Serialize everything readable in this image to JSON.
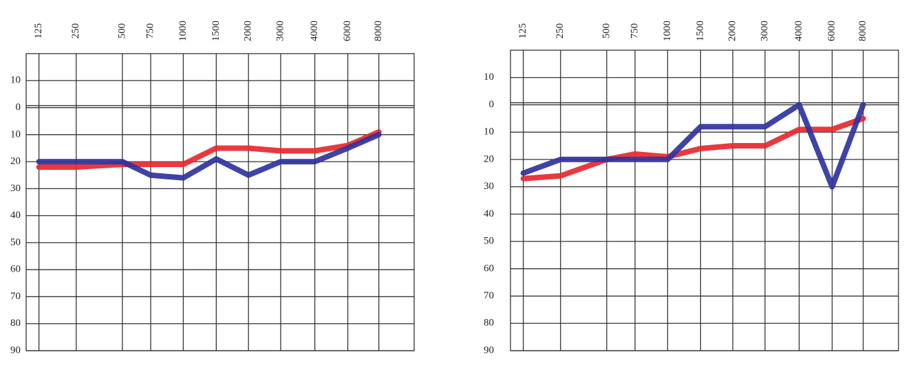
{
  "chart_data": [
    {
      "type": "line",
      "categories": [
        "125",
        "250",
        "500",
        "750",
        "1000",
        "1500",
        "2000",
        "3000",
        "4000",
        "6000",
        "8000"
      ],
      "series": [
        {
          "color": "#e8282e",
          "values": [
            22,
            22,
            21,
            21,
            21,
            15,
            15,
            16,
            16,
            14,
            9
          ]
        },
        {
          "color": "#2f339e",
          "values": [
            20,
            20,
            20,
            25,
            26,
            19,
            25,
            20,
            20,
            15,
            10
          ]
        }
      ],
      "ylim": [
        -20,
        90
      ],
      "y_inverted": true,
      "yticks": [
        {
          "value": -10,
          "label": "10"
        },
        0,
        10,
        20,
        30,
        40,
        50,
        60,
        70,
        80,
        90
      ],
      "grid": true
    },
    {
      "type": "line",
      "categories": [
        "125",
        "250",
        "500",
        "750",
        "1000",
        "1500",
        "2000",
        "3000",
        "4000",
        "6000",
        "8000"
      ],
      "series": [
        {
          "color": "#e8282e",
          "values": [
            27,
            26,
            20,
            18,
            19,
            16,
            15,
            15,
            9,
            9,
            5
          ]
        },
        {
          "color": "#2f339e",
          "values": [
            25,
            20,
            20,
            20,
            20,
            8,
            8,
            8,
            0,
            30,
            0
          ]
        }
      ],
      "ylim": [
        -20,
        90
      ],
      "y_inverted": true,
      "yticks": [
        {
          "value": -10,
          "label": "10"
        },
        0,
        10,
        20,
        30,
        40,
        50,
        60,
        70,
        80,
        90
      ],
      "grid": true
    }
  ]
}
